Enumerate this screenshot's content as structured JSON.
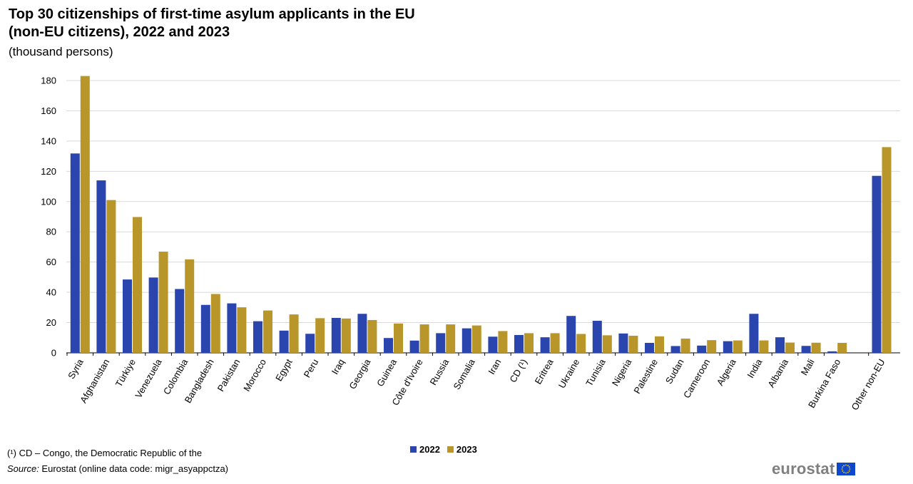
{
  "title_line1": "Top 30 citizenships of first-time asylum applicants in the EU",
  "title_line2": "(non-EU citizens), 2022 and 2023",
  "subtitle": "(thousand persons)",
  "footnote": "(¹)  CD – Congo, the Democratic Republic of the",
  "source_label": "Source:",
  "source_text": " Eurostat (online data code: migr_asyappctza)",
  "logo_text": "eurostat",
  "colors": {
    "s2022": "#2a45ad",
    "s2023": "#b8962a",
    "grid": "#d9d9d9"
  },
  "chart_data": {
    "type": "bar",
    "title": "Top 30 citizenships of first-time asylum applicants in the EU (non-EU citizens), 2022 and 2023",
    "ylabel": "(thousand persons)",
    "ylim": [
      0,
      180
    ],
    "yticks": [
      0,
      20,
      40,
      60,
      80,
      100,
      120,
      140,
      160,
      180
    ],
    "grid": true,
    "legend": "bottom-center",
    "categories": [
      "Syria",
      "Afghanistan",
      "Türkiye",
      "Venezuela",
      "Colombia",
      "Bangladesh",
      "Pakistan",
      "Morocco",
      "Egypt",
      "Peru",
      "Iraq",
      "Georgia",
      "Guinea",
      "Côte d'Ivoire",
      "Russia",
      "Somalia",
      "Iran",
      "CD (¹)",
      "Eritrea",
      "Ukraine",
      "Tunisia",
      "Nigeria",
      "Palestine",
      "Sudan",
      "Cameroon",
      "Algeria",
      "India",
      "Albania",
      "Mali",
      "Burkina Faso",
      "Other non-EU"
    ],
    "series": [
      {
        "name": "2022",
        "values": [
          131.8,
          114,
          48.5,
          49.8,
          42.2,
          31.7,
          32.7,
          20.9,
          14.7,
          12.6,
          23.1,
          25.8,
          9.8,
          8.1,
          13.0,
          16.2,
          10.7,
          11.8,
          10.3,
          24.4,
          21.2,
          12.8,
          6.6,
          4.5,
          4.8,
          7.7,
          25.8,
          10.3,
          4.6,
          1.0,
          117
        ]
      },
      {
        "name": "2023",
        "values": [
          183,
          101,
          89.8,
          66.9,
          61.8,
          38.9,
          30.1,
          28.0,
          25.4,
          22.9,
          22.7,
          21.7,
          19.4,
          18.8,
          18.8,
          18.1,
          14.4,
          13.0,
          13.0,
          12.5,
          11.6,
          11.3,
          10.9,
          9.4,
          8.4,
          8.2,
          8.2,
          6.8,
          6.7,
          6.6,
          136
        ]
      }
    ]
  }
}
